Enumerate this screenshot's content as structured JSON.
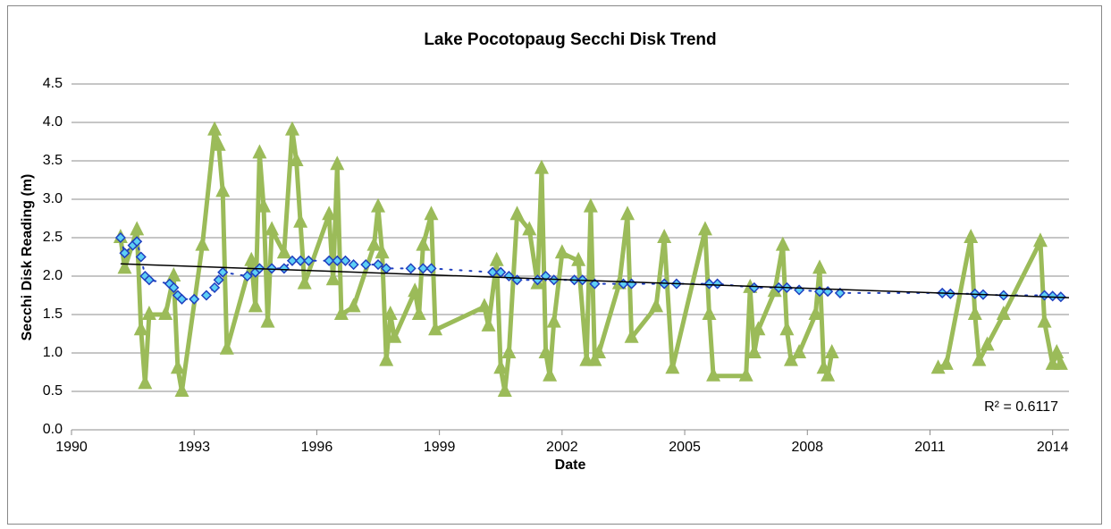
{
  "chart_data": {
    "type": "line",
    "title": "Lake Pocotopaug Secchi Disk Trend",
    "x_label": "Date",
    "y_label": "Secchi Disk Reading (m)",
    "xlim": [
      1990,
      2014.4
    ],
    "xticks": [
      1990,
      1993,
      1996,
      1999,
      2002,
      2005,
      2008,
      2011,
      2014
    ],
    "ylim": [
      0,
      4.5
    ],
    "yticks": [
      {
        "value": 0,
        "label": "0.0"
      },
      {
        "value": 0.5,
        "label": "0.5"
      },
      {
        "value": 1,
        "label": "1.0"
      },
      {
        "value": 1.5,
        "label": "1.5"
      },
      {
        "value": 2,
        "label": "2.0"
      },
      {
        "value": 2.5,
        "label": "2.5"
      },
      {
        "value": 3,
        "label": "3.0"
      },
      {
        "value": 3.5,
        "label": "3.5"
      },
      {
        "value": 4,
        "label": "4.0"
      },
      {
        "value": 4.5,
        "label": "4.5"
      }
    ],
    "grid": true,
    "series": [
      {
        "color": "#9BBB59",
        "marker": "triangle",
        "x": [
          1991.2,
          1991.3,
          1991.6,
          1991.7,
          1991.8,
          1991.9,
          1992.3,
          1992.5,
          1992.6,
          1992.7,
          1993.2,
          1993.5,
          1993.6,
          1993.7,
          1993.8,
          1994.4,
          1994.5,
          1994.6,
          1994.7,
          1994.8,
          1994.9,
          1995.2,
          1995.4,
          1995.5,
          1995.6,
          1995.7,
          1996.3,
          1996.4,
          1996.5,
          1996.6,
          1996.9,
          1997.4,
          1997.5,
          1997.6,
          1997.7,
          1997.8,
          1997.9,
          1998.4,
          1998.5,
          1998.6,
          1998.8,
          1998.9,
          2000.1,
          2000.2,
          2000.4,
          2000.5,
          2000.6,
          2000.7,
          2000.9,
          2001.2,
          2001.4,
          2001.5,
          2001.6,
          2001.7,
          2001.8,
          2002.0,
          2002.4,
          2002.6,
          2002.7,
          2002.8,
          2002.9,
          2003.4,
          2003.6,
          2003.7,
          2004.3,
          2004.5,
          2004.7,
          2005.5,
          2005.6,
          2005.7,
          2006.5,
          2006.6,
          2006.7,
          2006.8,
          2007.2,
          2007.4,
          2007.5,
          2007.6,
          2007.8,
          2008.2,
          2008.3,
          2008.4,
          2008.5,
          2008.6,
          null,
          2011.2,
          2011.4,
          2012.0,
          2012.1,
          2012.2,
          2012.4,
          2012.8,
          2013.7,
          2013.8,
          2014.0,
          2014.1,
          2014.2
        ],
        "values": [
          2.5,
          2.1,
          2.6,
          1.3,
          0.6,
          1.5,
          1.5,
          2.0,
          0.8,
          0.5,
          2.4,
          3.9,
          3.7,
          3.1,
          1.05,
          2.2,
          1.6,
          3.6,
          2.9,
          1.4,
          2.6,
          2.3,
          3.9,
          3.5,
          2.7,
          1.9,
          2.8,
          1.95,
          3.45,
          1.5,
          1.6,
          2.4,
          2.9,
          2.3,
          0.9,
          1.5,
          1.2,
          1.8,
          1.5,
          2.4,
          2.8,
          1.3,
          1.6,
          1.35,
          2.2,
          0.8,
          0.5,
          1.0,
          2.8,
          2.6,
          1.9,
          3.4,
          1.0,
          0.7,
          1.4,
          2.3,
          2.2,
          0.9,
          2.9,
          0.9,
          1.0,
          1.9,
          2.8,
          1.2,
          1.6,
          2.5,
          0.8,
          2.6,
          1.5,
          0.7,
          0.7,
          1.85,
          1.0,
          1.3,
          1.8,
          2.4,
          1.3,
          0.9,
          1.0,
          1.5,
          2.1,
          0.8,
          0.7,
          1.0,
          null,
          0.8,
          0.85,
          2.5,
          1.5,
          0.9,
          1.1,
          1.5,
          2.45,
          1.4,
          0.85,
          1.0,
          0.85
        ]
      },
      {
        "color": "#5DCFF5",
        "edge_color": "#1F3FBF",
        "marker": "diamond",
        "x": [
          1991.2,
          1991.3,
          1991.5,
          1991.6,
          1991.7,
          1991.8,
          1991.9,
          1992.4,
          1992.5,
          1992.6,
          1992.7,
          1993.0,
          1993.3,
          1993.5,
          1993.6,
          1993.7,
          1994.3,
          1994.5,
          1994.6,
          1994.9,
          1995.2,
          1995.4,
          1995.6,
          1995.8,
          1996.3,
          1996.5,
          1996.7,
          1996.9,
          1997.2,
          1997.5,
          1997.7,
          1998.3,
          1998.6,
          1998.8,
          2000.3,
          2000.5,
          2000.7,
          2000.9,
          2001.4,
          2001.6,
          2001.8,
          2002.3,
          2002.5,
          2002.8,
          2003.5,
          2003.7,
          2004.5,
          2004.8,
          2005.6,
          2005.8,
          2006.7,
          2007.3,
          2007.5,
          2007.8,
          2008.3,
          2008.5,
          2008.8,
          2011.3,
          2011.5,
          2012.1,
          2012.3,
          2012.8,
          2013.8,
          2014.0,
          2014.2
        ],
        "values": [
          2.5,
          2.3,
          2.4,
          2.45,
          2.25,
          2.0,
          1.95,
          1.9,
          1.85,
          1.75,
          1.7,
          1.7,
          1.75,
          1.85,
          1.95,
          2.05,
          2.0,
          2.05,
          2.1,
          2.1,
          2.1,
          2.2,
          2.2,
          2.2,
          2.2,
          2.2,
          2.2,
          2.15,
          2.15,
          2.15,
          2.1,
          2.1,
          2.1,
          2.1,
          2.05,
          2.05,
          2.0,
          1.95,
          1.95,
          2.0,
          1.95,
          1.95,
          1.95,
          1.9,
          1.9,
          1.9,
          1.9,
          1.9,
          1.9,
          1.9,
          1.85,
          1.85,
          1.85,
          1.82,
          1.8,
          1.8,
          1.78,
          1.78,
          1.77,
          1.77,
          1.76,
          1.75,
          1.75,
          1.74,
          1.73
        ]
      }
    ],
    "trendline": {
      "color": "#000000",
      "x": [
        1991.2,
        2014.4
      ],
      "values": [
        2.16,
        1.72
      ]
    },
    "annotation": "R² = 0.6117"
  }
}
